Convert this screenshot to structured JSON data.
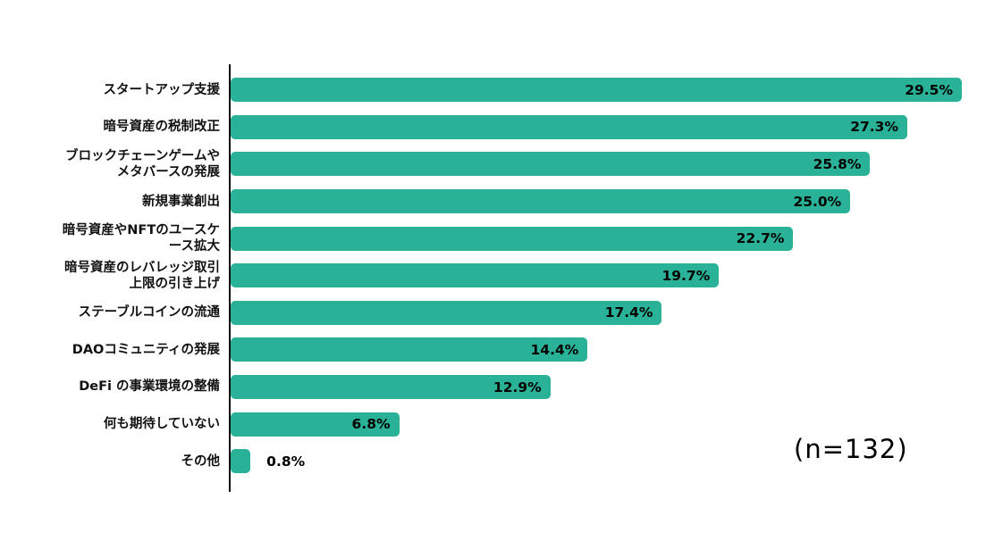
{
  "chart_data": {
    "type": "bar",
    "orientation": "horizontal",
    "title": "",
    "xlabel": "",
    "ylabel": "",
    "xlim": [
      0,
      30
    ],
    "grid": false,
    "legend": false,
    "bar_color": "#2ab299",
    "categories": [
      "スタートアップ支援",
      "暗号資産の税制改正",
      "ブロックチェーンゲームやメタバースの発展",
      "新規事業創出",
      "暗号資産やNFTのユースケース拡大",
      "暗号資産のレバレッジ取引上限の引き上げ",
      "ステーブルコインの流通",
      "DAOコミュニティの発展",
      "DeFi の事業環境の整備",
      "何も期待していない",
      "その他"
    ],
    "values": [
      29.5,
      27.3,
      25.8,
      25.0,
      22.7,
      19.7,
      17.4,
      14.4,
      12.9,
      6.8,
      0.8
    ],
    "value_labels": [
      "29.5%",
      "27.3%",
      "25.8%",
      "25.0%",
      "22.7%",
      "19.7%",
      "17.4%",
      "14.4%",
      "12.9%",
      "6.8%",
      "0.8%"
    ],
    "annotation": "(n=132)"
  }
}
